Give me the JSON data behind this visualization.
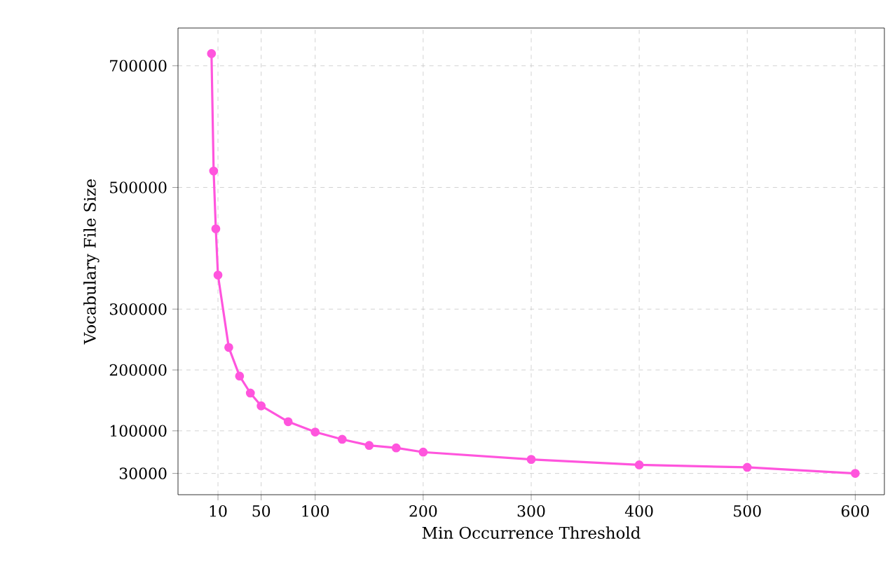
{
  "chart_data": {
    "type": "line",
    "xlabel": "Min Occurrence Threshold",
    "ylabel": "Vocabulary File Size",
    "x": [
      4,
      6,
      8,
      10,
      20,
      30,
      40,
      50,
      75,
      100,
      125,
      150,
      175,
      200,
      300,
      400,
      500,
      600
    ],
    "series": [
      {
        "color": "#ff55dd",
        "values": [
          720000,
          527000,
          432000,
          356000,
          237000,
          190000,
          162000,
          141000,
          115000,
          98000,
          86000,
          76000,
          72000,
          65000,
          53000,
          44000,
          40000,
          30000
        ]
      }
    ],
    "xlim": [
      -27,
      627
    ],
    "ylim": [
      -5000,
      762000
    ],
    "xticks": [
      10,
      50,
      100,
      200,
      300,
      400,
      500,
      600
    ],
    "yticks": [
      30000,
      100000,
      200000,
      300000,
      500000,
      700000
    ],
    "grid": true,
    "marker": "circle",
    "line_style": "solid"
  }
}
